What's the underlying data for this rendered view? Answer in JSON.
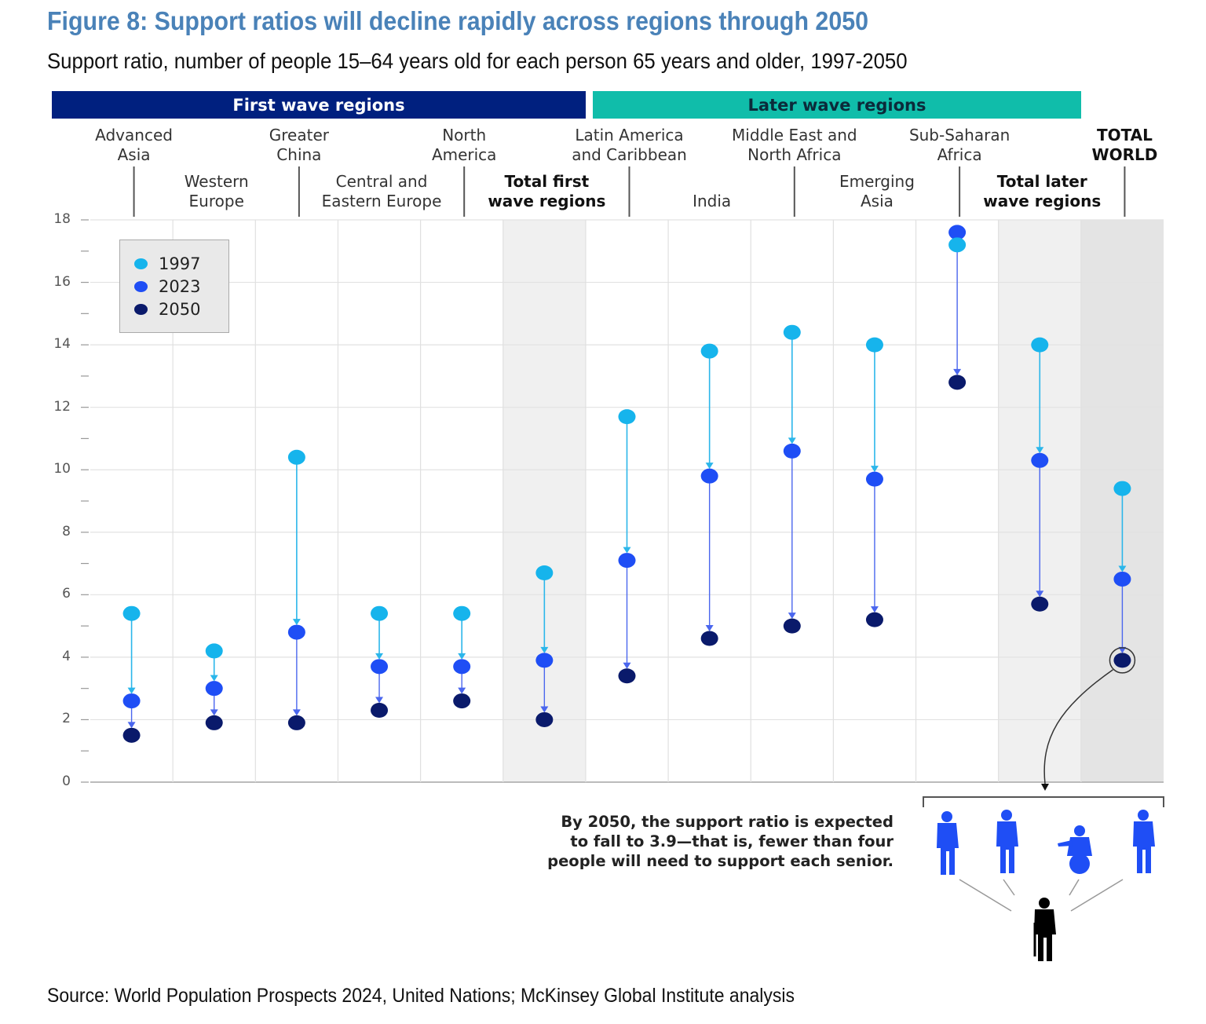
{
  "title": "Figure 8: Support ratios will decline rapidly across regions through 2050",
  "subtitle": "Support ratio, number of people 15–64 years old for each person 65 years and older, 1997-2050",
  "bands": {
    "first": "First wave regions",
    "later": "Later wave regions"
  },
  "colors": {
    "y1997": "#16b4ec",
    "y2023": "#1f4ef5",
    "y2050": "#0a1a6b",
    "first_band": "#00207f",
    "later_band": "#10bdaa",
    "title": "#4a82b8"
  },
  "annotation": {
    "lines": [
      "By 2050, the support ratio is expected",
      "to fall to 3.9—that is, fewer than four",
      "people will need to support each senior."
    ],
    "icons": [
      "person-icon",
      "person-icon",
      "wheelchair-person-icon",
      "person-icon",
      "senior-with-cane-icon"
    ]
  },
  "source": "Source: World Population Prospects 2024, United Nations; McKinsey Global Institute analysis",
  "chart_data": {
    "type": "dot-arrow",
    "title": "Figure 8: Support ratios will decline rapidly across regions through 2050",
    "ylabel": "Support ratio",
    "ylim": [
      0,
      18
    ],
    "yticks": [
      "0",
      "2",
      "4",
      "6",
      "8",
      "10",
      "12",
      "14",
      "16",
      "18"
    ],
    "grid": true,
    "legend": {
      "placement": "top-left",
      "entries": [
        "1997",
        "2023",
        "2050"
      ]
    },
    "categories": [
      {
        "lines": [
          "Advanced",
          "Asia"
        ],
        "group": "first",
        "bold": false
      },
      {
        "lines": [
          "Western",
          "Europe"
        ],
        "group": "first",
        "bold": false
      },
      {
        "lines": [
          "Greater",
          "China"
        ],
        "group": "first",
        "bold": false
      },
      {
        "lines": [
          "Central and",
          "Eastern Europe"
        ],
        "group": "first",
        "bold": false
      },
      {
        "lines": [
          "North",
          "America"
        ],
        "group": "first",
        "bold": false
      },
      {
        "lines": [
          "Total  first",
          "wave regions"
        ],
        "group": "first",
        "bold": true
      },
      {
        "lines": [
          "Latin America",
          "and Caribbean"
        ],
        "group": "later",
        "bold": false
      },
      {
        "lines": [
          "India"
        ],
        "group": "later",
        "bold": false
      },
      {
        "lines": [
          "Middle East and",
          "North Africa"
        ],
        "group": "later",
        "bold": false
      },
      {
        "lines": [
          "Emerging",
          "Asia"
        ],
        "group": "later",
        "bold": false
      },
      {
        "lines": [
          "Sub-Saharan",
          "Africa"
        ],
        "group": "later",
        "bold": false
      },
      {
        "lines": [
          "Total later",
          "wave regions"
        ],
        "group": "later",
        "bold": true
      },
      {
        "lines": [
          "TOTAL",
          "WORLD"
        ],
        "group": "world",
        "bold": true
      }
    ],
    "series": [
      {
        "name": "1997",
        "values": [
          5.4,
          4.2,
          10.4,
          5.4,
          5.4,
          6.7,
          11.7,
          13.8,
          14.4,
          14.0,
          17.2,
          14.0,
          9.4
        ]
      },
      {
        "name": "2023",
        "values": [
          2.6,
          3.0,
          4.8,
          3.7,
          3.7,
          3.9,
          7.1,
          9.8,
          10.6,
          9.7,
          17.6,
          10.3,
          6.5
        ]
      },
      {
        "name": "2050",
        "values": [
          1.5,
          1.9,
          1.9,
          2.3,
          2.6,
          2.0,
          3.4,
          4.6,
          5.0,
          5.2,
          12.8,
          5.7,
          3.9
        ]
      }
    ]
  }
}
